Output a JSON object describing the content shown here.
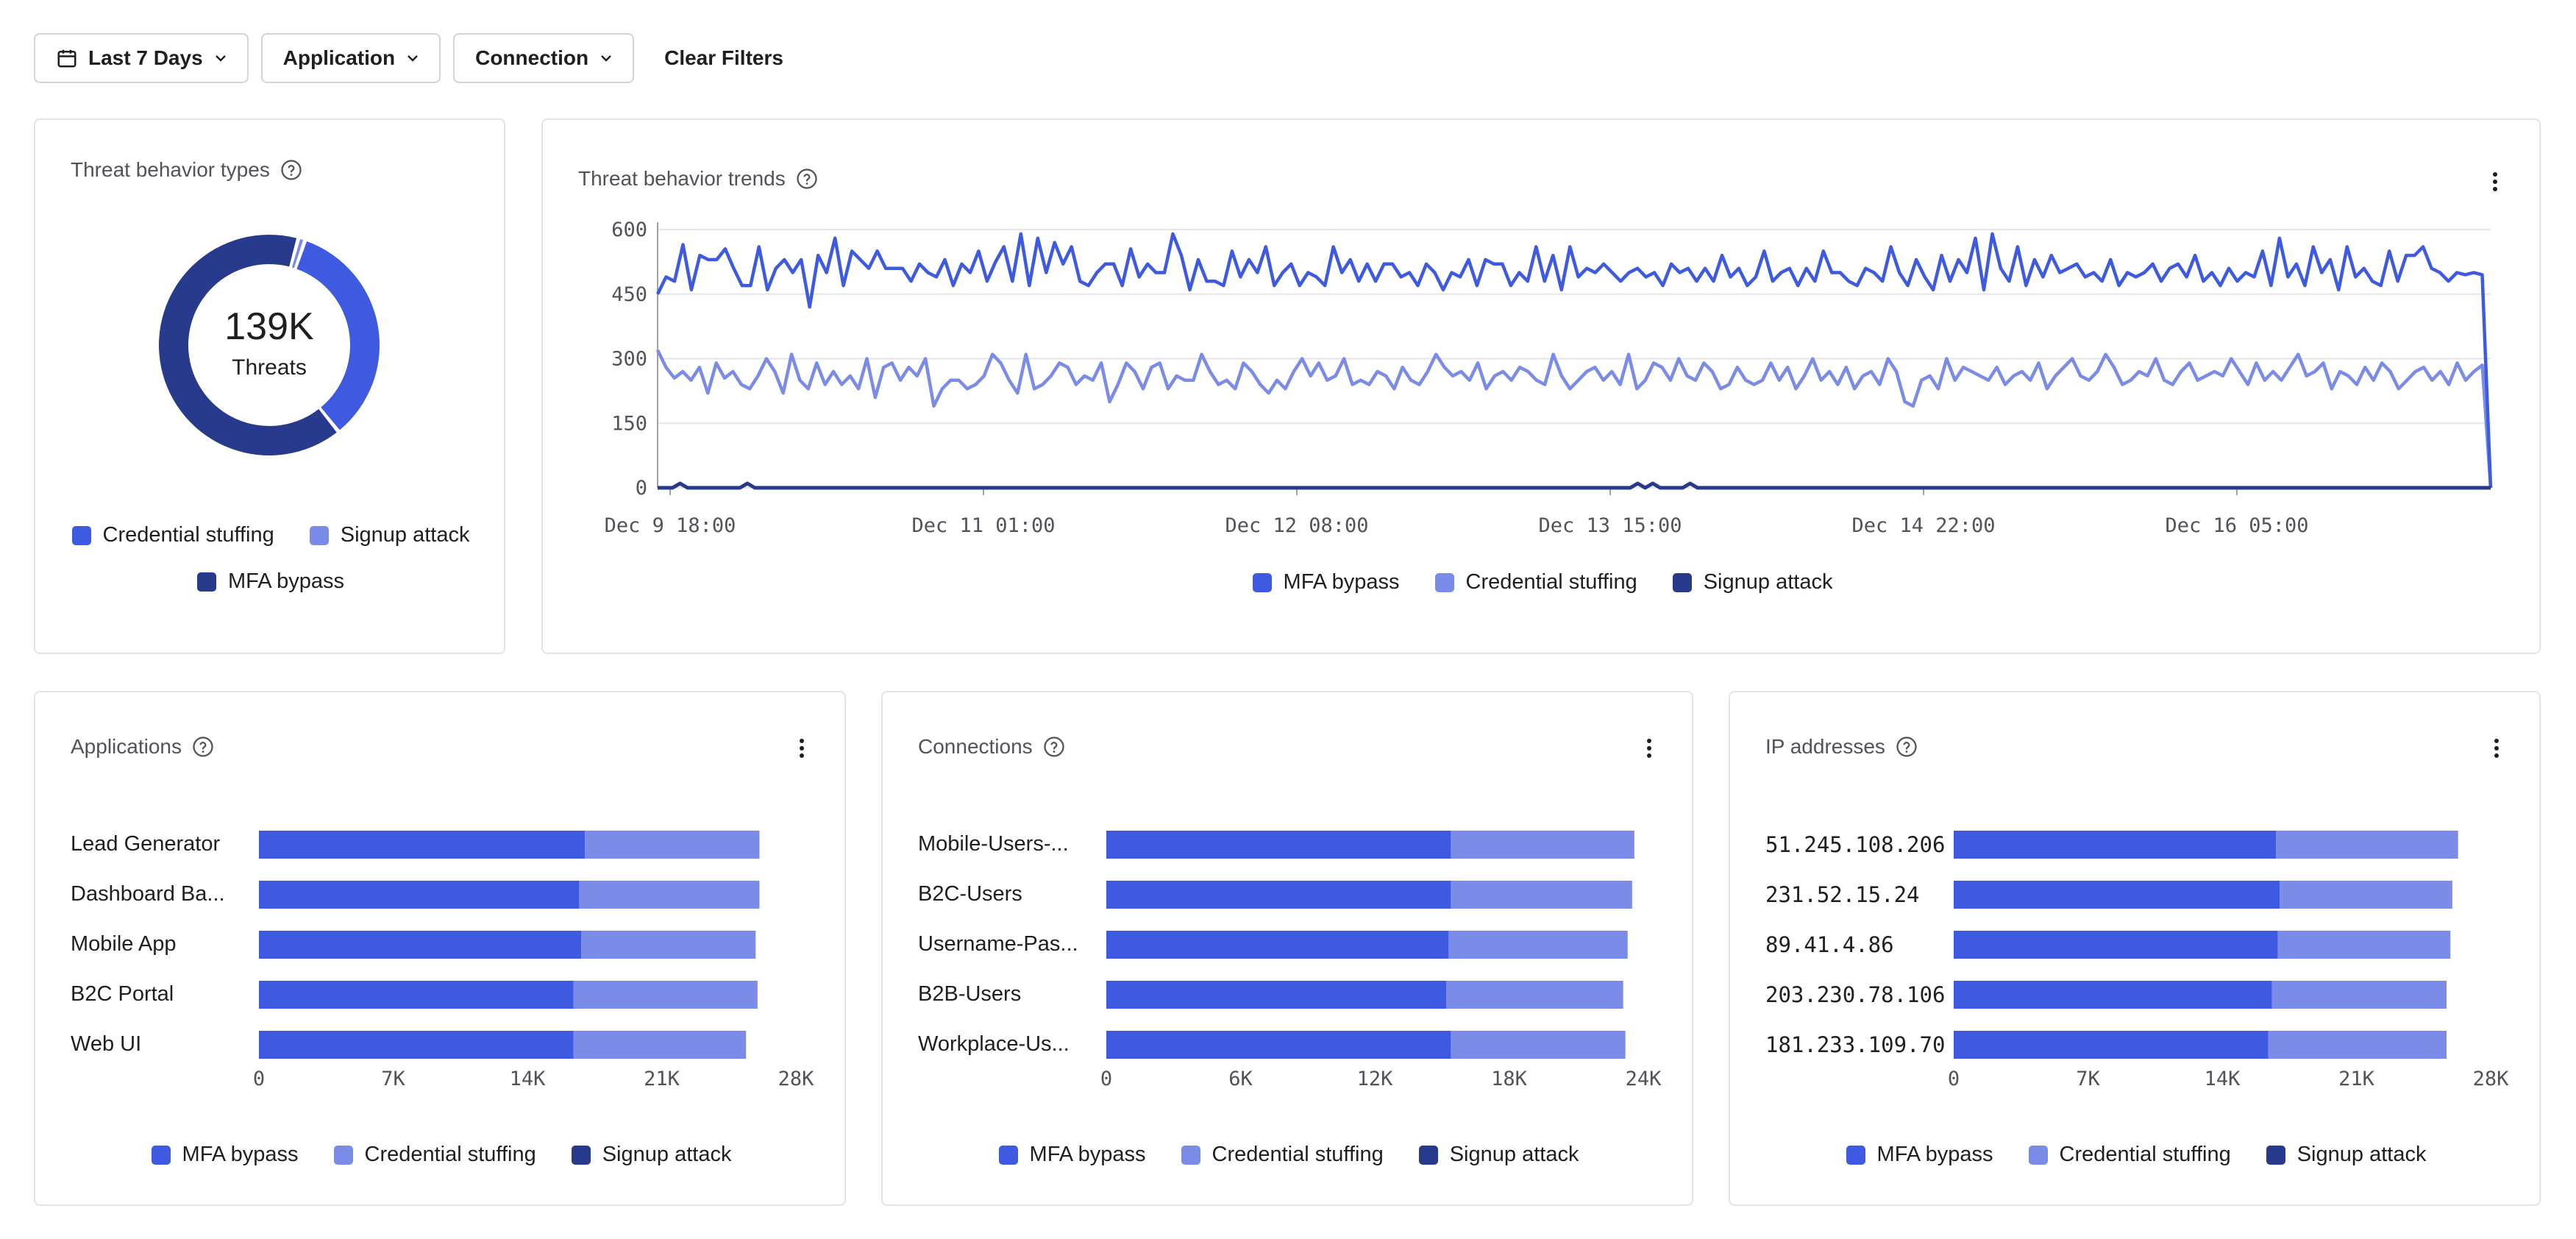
{
  "filters": {
    "date_range": "Last 7 Days",
    "application": "Application",
    "connection": "Connection",
    "clear": "Clear Filters"
  },
  "colors": {
    "mfa_bypass": "#3d5ae0",
    "credential_stuffing": "#7a8be8",
    "signup_attack": "#283a8c",
    "grid": "#e6e6ea",
    "axis": "#a1a1aa"
  },
  "icons": {
    "calendar": "calendar-icon",
    "chevron": "chevron-down-icon",
    "help": "help-circle-icon",
    "more": "more-vertical-icon"
  },
  "threat_types": {
    "title": "Threat behavior types",
    "total_label": "139K",
    "total_caption": "Threats",
    "legend": [
      "Credential stuffing",
      "Signup attack",
      "MFA bypass"
    ]
  },
  "threat_trends": {
    "title": "Threat behavior trends",
    "legend": [
      "MFA bypass",
      "Credential stuffing",
      "Signup attack"
    ]
  },
  "applications": {
    "title": "Applications",
    "legend": [
      "MFA bypass",
      "Credential stuffing",
      "Signup attack"
    ]
  },
  "connections": {
    "title": "Connections",
    "legend": [
      "MFA bypass",
      "Credential stuffing",
      "Signup attack"
    ]
  },
  "ip_addresses": {
    "title": "IP addresses",
    "legend": [
      "MFA bypass",
      "Credential stuffing",
      "Signup attack"
    ]
  },
  "chart_data": [
    {
      "type": "pie",
      "categories": [
        "MFA bypass",
        "Credential stuffing",
        "Signup attack"
      ],
      "values": [
        0.65,
        0.34,
        0.01
      ],
      "total": "139K"
    },
    {
      "type": "line",
      "x_ticks": [
        "Dec 9 18:00",
        "Dec 11 01:00",
        "Dec 12 08:00",
        "Dec 13 15:00",
        "Dec 14 22:00",
        "Dec 16 05:00"
      ],
      "ylim": [
        0,
        600
      ],
      "y_ticks": [
        "0",
        "150",
        "300",
        "450",
        "600"
      ],
      "grid": true,
      "legend_position": "bottom",
      "series": [
        {
          "name": "MFA bypass",
          "values": [
            450,
            490,
            480,
            565,
            460,
            540,
            530,
            530,
            555,
            510,
            470,
            470,
            560,
            460,
            510,
            530,
            500,
            530,
            420,
            540,
            500,
            580,
            470,
            550,
            530,
            510,
            550,
            510,
            510,
            510,
            480,
            520,
            500,
            490,
            530,
            470,
            520,
            500,
            550,
            480,
            525,
            560,
            480,
            590,
            470,
            580,
            500,
            570,
            520,
            560,
            480,
            470,
            500,
            520,
            520,
            470,
            555,
            490,
            520,
            500,
            500,
            590,
            540,
            460,
            530,
            480,
            480,
            470,
            550,
            490,
            530,
            500,
            560,
            470,
            500,
            520,
            470,
            500,
            490,
            470,
            560,
            500,
            530,
            480,
            520,
            480,
            520,
            520,
            490,
            500,
            470,
            520,
            500,
            460,
            500,
            490,
            530,
            470,
            530,
            520,
            520,
            470,
            500,
            480,
            560,
            480,
            540,
            460,
            560,
            490,
            510,
            500,
            520,
            500,
            480,
            500,
            510,
            490,
            500,
            470,
            520,
            500,
            510,
            480,
            510,
            480,
            540,
            490,
            510,
            470,
            490,
            550,
            480,
            500,
            510,
            470,
            510,
            480,
            550,
            500,
            500,
            480,
            470,
            510,
            500,
            480,
            560,
            500,
            470,
            530,
            490,
            460,
            540,
            480,
            530,
            500,
            580,
            460,
            590,
            510,
            480,
            560,
            470,
            530,
            490,
            540,
            500,
            510,
            520,
            490,
            500,
            480,
            530,
            470,
            500,
            490,
            500,
            520,
            480,
            510,
            520,
            490,
            540,
            480,
            500,
            470,
            510,
            480,
            500,
            490,
            550,
            470,
            580,
            490,
            520,
            470,
            560,
            500,
            530,
            460,
            560,
            490,
            510,
            480,
            470,
            550,
            480,
            540,
            540,
            560,
            510,
            500,
            480,
            500,
            495,
            500,
            495,
            0
          ]
        },
        {
          "name": "Credential stuffing",
          "values": [
            320,
            280,
            255,
            270,
            250,
            280,
            220,
            290,
            255,
            270,
            240,
            230,
            260,
            300,
            270,
            220,
            310,
            250,
            230,
            290,
            240,
            270,
            240,
            260,
            230,
            300,
            210,
            280,
            290,
            250,
            280,
            260,
            300,
            190,
            230,
            250,
            250,
            230,
            240,
            260,
            310,
            290,
            250,
            220,
            310,
            230,
            240,
            260,
            290,
            280,
            240,
            260,
            250,
            290,
            200,
            240,
            290,
            270,
            230,
            280,
            290,
            230,
            260,
            250,
            250,
            310,
            270,
            240,
            250,
            230,
            290,
            270,
            240,
            220,
            250,
            230,
            270,
            300,
            260,
            290,
            250,
            260,
            300,
            240,
            250,
            240,
            270,
            260,
            230,
            280,
            250,
            240,
            270,
            310,
            280,
            260,
            270,
            250,
            290,
            230,
            260,
            270,
            250,
            280,
            270,
            250,
            240,
            310,
            260,
            230,
            250,
            270,
            280,
            250,
            270,
            240,
            310,
            230,
            250,
            290,
            280,
            250,
            300,
            260,
            250,
            290,
            270,
            230,
            240,
            280,
            250,
            240,
            250,
            290,
            250,
            280,
            230,
            260,
            300,
            250,
            270,
            240,
            280,
            230,
            260,
            270,
            240,
            300,
            270,
            200,
            190,
            250,
            260,
            230,
            300,
            250,
            280,
            270,
            260,
            250,
            280,
            240,
            260,
            270,
            250,
            290,
            230,
            260,
            280,
            300,
            260,
            250,
            270,
            310,
            280,
            240,
            250,
            270,
            260,
            300,
            250,
            240,
            270,
            290,
            250,
            260,
            270,
            260,
            300,
            270,
            240,
            290,
            250,
            270,
            250,
            280,
            310,
            260,
            270,
            290,
            230,
            270,
            260,
            240,
            280,
            250,
            290,
            270,
            230,
            250,
            270,
            280,
            250,
            270,
            240,
            290,
            250,
            270,
            285,
            0
          ]
        },
        {
          "name": "Signup attack",
          "values": [
            0,
            0,
            0,
            10,
            0,
            0,
            0,
            0,
            0,
            0,
            0,
            0,
            10,
            0,
            0,
            0,
            0,
            0,
            0,
            0,
            0,
            0,
            0,
            0,
            0,
            0,
            0,
            0,
            0,
            0,
            0,
            0,
            0,
            0,
            0,
            0,
            0,
            0,
            0,
            0,
            0,
            0,
            0,
            0,
            0,
            0,
            0,
            0,
            0,
            0,
            0,
            0,
            0,
            0,
            0,
            0,
            0,
            0,
            0,
            0,
            0,
            0,
            0,
            0,
            0,
            0,
            0,
            0,
            0,
            0,
            0,
            0,
            0,
            0,
            0,
            0,
            0,
            0,
            0,
            0,
            0,
            0,
            0,
            0,
            0,
            0,
            0,
            0,
            0,
            0,
            0,
            0,
            0,
            0,
            0,
            0,
            0,
            0,
            0,
            0,
            0,
            0,
            0,
            0,
            0,
            0,
            0,
            0,
            0,
            0,
            0,
            0,
            0,
            0,
            0,
            0,
            0,
            0,
            0,
            0,
            0,
            0,
            0,
            0,
            0,
            0,
            0,
            0,
            0,
            0,
            0,
            10,
            0,
            10,
            0,
            0,
            0,
            0,
            10,
            0,
            0,
            0,
            0,
            0,
            0,
            0,
            0,
            0,
            0,
            0,
            0,
            0,
            0,
            0,
            0,
            0,
            0,
            0,
            0,
            0,
            0,
            0,
            0,
            0,
            0,
            0,
            0,
            0,
            0,
            0,
            0,
            0,
            0,
            0,
            0,
            0,
            0,
            0,
            0,
            0,
            0,
            0,
            0,
            0,
            0,
            0,
            0,
            0,
            0,
            0,
            0,
            0,
            0,
            0,
            0,
            0,
            0,
            0,
            0,
            0,
            0,
            0,
            0,
            0,
            0,
            0,
            0,
            0,
            0,
            0,
            0,
            0,
            0,
            0,
            0,
            0,
            0,
            0,
            0,
            0,
            0,
            0,
            0,
            0,
            0,
            0,
            0,
            0,
            0,
            0,
            0,
            0,
            0,
            0,
            0,
            0,
            0,
            0,
            0,
            0,
            0,
            0,
            0,
            0,
            0,
            0
          ]
        }
      ]
    },
    {
      "type": "bar",
      "orientation": "horizontal",
      "stacked": true,
      "categories": [
        "Lead Generator",
        "Dashboard Ba...",
        "Mobile App",
        "B2C Portal",
        "Web UI"
      ],
      "x_ticks": [
        "0",
        "7K",
        "14K",
        "21K",
        "28K"
      ],
      "xlim": [
        0,
        28000
      ],
      "series": [
        {
          "name": "MFA bypass",
          "values": [
            17000,
            16700,
            16800,
            16400,
            16400
          ]
        },
        {
          "name": "Credential stuffing",
          "values": [
            9100,
            9400,
            9100,
            9600,
            9000
          ]
        },
        {
          "name": "Signup attack",
          "values": [
            0,
            0,
            0,
            0,
            0
          ]
        }
      ]
    },
    {
      "type": "bar",
      "orientation": "horizontal",
      "stacked": true,
      "categories": [
        "Mobile-Users-...",
        "B2C-Users",
        "Username-Pas...",
        "B2B-Users",
        "Workplace-Us..."
      ],
      "x_ticks": [
        "0",
        "6K",
        "12K",
        "18K",
        "24K"
      ],
      "xlim": [
        0,
        24000
      ],
      "series": [
        {
          "name": "MFA bypass",
          "values": [
            15400,
            15400,
            15300,
            15200,
            15400
          ]
        },
        {
          "name": "Credential stuffing",
          "values": [
            8200,
            8100,
            8000,
            7900,
            7800
          ]
        },
        {
          "name": "Signup attack",
          "values": [
            0,
            0,
            0,
            0,
            0
          ]
        }
      ]
    },
    {
      "type": "bar",
      "orientation": "horizontal",
      "stacked": true,
      "categories": [
        "51.245.108.206",
        "231.52.15.24",
        "89.41.4.86",
        "203.230.78.106",
        "181.233.109.70"
      ],
      "x_ticks": [
        "0",
        "7K",
        "14K",
        "21K",
        "28K"
      ],
      "xlim": [
        0,
        28000
      ],
      "series": [
        {
          "name": "MFA bypass",
          "values": [
            16800,
            17000,
            16900,
            16600,
            16400
          ]
        },
        {
          "name": "Credential stuffing",
          "values": [
            9500,
            9000,
            9000,
            9100,
            9300
          ]
        },
        {
          "name": "Signup attack",
          "values": [
            0,
            0,
            0,
            0,
            0
          ]
        }
      ]
    }
  ]
}
